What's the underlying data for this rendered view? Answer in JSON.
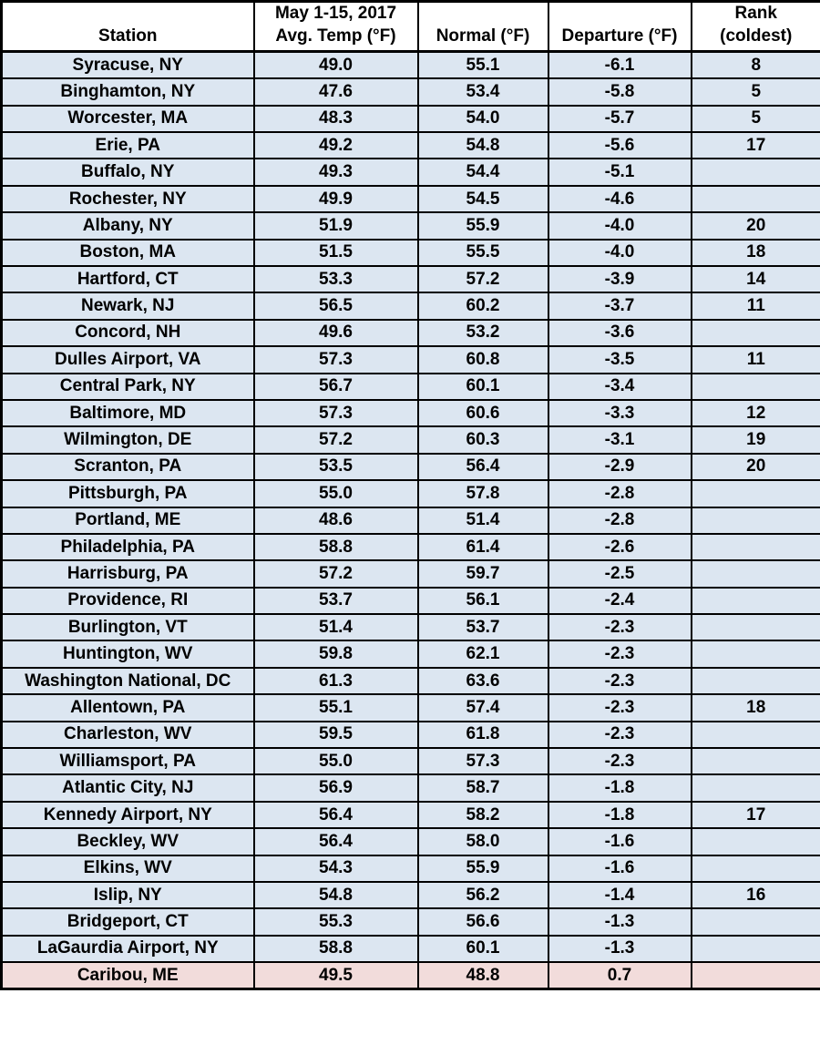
{
  "colors": {
    "row_bg": "#dce6f1",
    "highlight_bg": "#f2dcdb",
    "header_bg": "#ffffff",
    "border": "#000000",
    "text": "#000000"
  },
  "table": {
    "columns": [
      {
        "line1": "",
        "line2": "Station"
      },
      {
        "line1": "May 1-15, 2017",
        "line2": "Avg. Temp (°F)"
      },
      {
        "line1": "",
        "line2": "Normal (°F)"
      },
      {
        "line1": "",
        "line2": "Departure (°F)"
      },
      {
        "line1": "Rank",
        "line2": "(coldest)"
      }
    ],
    "rows": [
      {
        "station": "Syracuse, NY",
        "avg_temp": "49.0",
        "normal": "55.1",
        "departure": "-6.1",
        "rank": "8",
        "highlight": false
      },
      {
        "station": "Binghamton, NY",
        "avg_temp": "47.6",
        "normal": "53.4",
        "departure": "-5.8",
        "rank": "5",
        "highlight": false
      },
      {
        "station": "Worcester, MA",
        "avg_temp": "48.3",
        "normal": "54.0",
        "departure": "-5.7",
        "rank": "5",
        "highlight": false
      },
      {
        "station": "Erie, PA",
        "avg_temp": "49.2",
        "normal": "54.8",
        "departure": "-5.6",
        "rank": "17",
        "highlight": false
      },
      {
        "station": "Buffalo, NY",
        "avg_temp": "49.3",
        "normal": "54.4",
        "departure": "-5.1",
        "rank": "",
        "highlight": false
      },
      {
        "station": "Rochester, NY",
        "avg_temp": "49.9",
        "normal": "54.5",
        "departure": "-4.6",
        "rank": "",
        "highlight": false
      },
      {
        "station": "Albany, NY",
        "avg_temp": "51.9",
        "normal": "55.9",
        "departure": "-4.0",
        "rank": "20",
        "highlight": false
      },
      {
        "station": "Boston, MA",
        "avg_temp": "51.5",
        "normal": "55.5",
        "departure": "-4.0",
        "rank": "18",
        "highlight": false
      },
      {
        "station": "Hartford, CT",
        "avg_temp": "53.3",
        "normal": "57.2",
        "departure": "-3.9",
        "rank": "14",
        "highlight": false
      },
      {
        "station": "Newark, NJ",
        "avg_temp": "56.5",
        "normal": "60.2",
        "departure": "-3.7",
        "rank": "11",
        "highlight": false
      },
      {
        "station": "Concord, NH",
        "avg_temp": "49.6",
        "normal": "53.2",
        "departure": "-3.6",
        "rank": "",
        "highlight": false
      },
      {
        "station": "Dulles Airport, VA",
        "avg_temp": "57.3",
        "normal": "60.8",
        "departure": "-3.5",
        "rank": "11",
        "highlight": false
      },
      {
        "station": "Central Park, NY",
        "avg_temp": "56.7",
        "normal": "60.1",
        "departure": "-3.4",
        "rank": "",
        "highlight": false
      },
      {
        "station": "Baltimore, MD",
        "avg_temp": "57.3",
        "normal": "60.6",
        "departure": "-3.3",
        "rank": "12",
        "highlight": false
      },
      {
        "station": "Wilmington, DE",
        "avg_temp": "57.2",
        "normal": "60.3",
        "departure": "-3.1",
        "rank": "19",
        "highlight": false
      },
      {
        "station": "Scranton, PA",
        "avg_temp": "53.5",
        "normal": "56.4",
        "departure": "-2.9",
        "rank": "20",
        "highlight": false
      },
      {
        "station": "Pittsburgh, PA",
        "avg_temp": "55.0",
        "normal": "57.8",
        "departure": "-2.8",
        "rank": "",
        "highlight": false
      },
      {
        "station": "Portland, ME",
        "avg_temp": "48.6",
        "normal": "51.4",
        "departure": "-2.8",
        "rank": "",
        "highlight": false
      },
      {
        "station": "Philadelphia, PA",
        "avg_temp": "58.8",
        "normal": "61.4",
        "departure": "-2.6",
        "rank": "",
        "highlight": false
      },
      {
        "station": "Harrisburg, PA",
        "avg_temp": "57.2",
        "normal": "59.7",
        "departure": "-2.5",
        "rank": "",
        "highlight": false
      },
      {
        "station": "Providence, RI",
        "avg_temp": "53.7",
        "normal": "56.1",
        "departure": "-2.4",
        "rank": "",
        "highlight": false
      },
      {
        "station": "Burlington, VT",
        "avg_temp": "51.4",
        "normal": "53.7",
        "departure": "-2.3",
        "rank": "",
        "highlight": false
      },
      {
        "station": "Huntington, WV",
        "avg_temp": "59.8",
        "normal": "62.1",
        "departure": "-2.3",
        "rank": "",
        "highlight": false
      },
      {
        "station": "Washington National, DC",
        "avg_temp": "61.3",
        "normal": "63.6",
        "departure": "-2.3",
        "rank": "",
        "highlight": false
      },
      {
        "station": "Allentown, PA",
        "avg_temp": "55.1",
        "normal": "57.4",
        "departure": "-2.3",
        "rank": "18",
        "highlight": false
      },
      {
        "station": "Charleston, WV",
        "avg_temp": "59.5",
        "normal": "61.8",
        "departure": "-2.3",
        "rank": "",
        "highlight": false
      },
      {
        "station": "Williamsport, PA",
        "avg_temp": "55.0",
        "normal": "57.3",
        "departure": "-2.3",
        "rank": "",
        "highlight": false
      },
      {
        "station": "Atlantic City, NJ",
        "avg_temp": "56.9",
        "normal": "58.7",
        "departure": "-1.8",
        "rank": "",
        "highlight": false
      },
      {
        "station": "Kennedy Airport, NY",
        "avg_temp": "56.4",
        "normal": "58.2",
        "departure": "-1.8",
        "rank": "17",
        "highlight": false
      },
      {
        "station": "Beckley, WV",
        "avg_temp": "56.4",
        "normal": "58.0",
        "departure": "-1.6",
        "rank": "",
        "highlight": false
      },
      {
        "station": "Elkins, WV",
        "avg_temp": "54.3",
        "normal": "55.9",
        "departure": "-1.6",
        "rank": "",
        "highlight": false
      },
      {
        "station": "Islip, NY",
        "avg_temp": "54.8",
        "normal": "56.2",
        "departure": "-1.4",
        "rank": "16",
        "highlight": false
      },
      {
        "station": "Bridgeport, CT",
        "avg_temp": "55.3",
        "normal": "56.6",
        "departure": "-1.3",
        "rank": "",
        "highlight": false
      },
      {
        "station": "LaGaurdia Airport, NY",
        "avg_temp": "58.8",
        "normal": "60.1",
        "departure": "-1.3",
        "rank": "",
        "highlight": false
      },
      {
        "station": "Caribou, ME",
        "avg_temp": "49.5",
        "normal": "48.8",
        "departure": "0.7",
        "rank": "",
        "highlight": true
      }
    ]
  },
  "chart_data": {
    "type": "table",
    "columns": [
      "Station",
      "May 1-15, 2017 Avg. Temp (°F)",
      "Normal (°F)",
      "Departure (°F)",
      "Rank (coldest)"
    ],
    "rows": [
      [
        "Syracuse, NY",
        49.0,
        55.1,
        -6.1,
        8
      ],
      [
        "Binghamton, NY",
        47.6,
        53.4,
        -5.8,
        5
      ],
      [
        "Worcester, MA",
        48.3,
        54.0,
        -5.7,
        5
      ],
      [
        "Erie, PA",
        49.2,
        54.8,
        -5.6,
        17
      ],
      [
        "Buffalo, NY",
        49.3,
        54.4,
        -5.1,
        null
      ],
      [
        "Rochester, NY",
        49.9,
        54.5,
        -4.6,
        null
      ],
      [
        "Albany, NY",
        51.9,
        55.9,
        -4.0,
        20
      ],
      [
        "Boston, MA",
        51.5,
        55.5,
        -4.0,
        18
      ],
      [
        "Hartford, CT",
        53.3,
        57.2,
        -3.9,
        14
      ],
      [
        "Newark, NJ",
        56.5,
        60.2,
        -3.7,
        11
      ],
      [
        "Concord, NH",
        49.6,
        53.2,
        -3.6,
        null
      ],
      [
        "Dulles Airport, VA",
        57.3,
        60.8,
        -3.5,
        11
      ],
      [
        "Central Park, NY",
        56.7,
        60.1,
        -3.4,
        null
      ],
      [
        "Baltimore, MD",
        57.3,
        60.6,
        -3.3,
        12
      ],
      [
        "Wilmington, DE",
        57.2,
        60.3,
        -3.1,
        19
      ],
      [
        "Scranton, PA",
        53.5,
        56.4,
        -2.9,
        20
      ],
      [
        "Pittsburgh, PA",
        55.0,
        57.8,
        -2.8,
        null
      ],
      [
        "Portland, ME",
        48.6,
        51.4,
        -2.8,
        null
      ],
      [
        "Philadelphia, PA",
        58.8,
        61.4,
        -2.6,
        null
      ],
      [
        "Harrisburg, PA",
        57.2,
        59.7,
        -2.5,
        null
      ],
      [
        "Providence, RI",
        53.7,
        56.1,
        -2.4,
        null
      ],
      [
        "Burlington, VT",
        51.4,
        53.7,
        -2.3,
        null
      ],
      [
        "Huntington, WV",
        59.8,
        62.1,
        -2.3,
        null
      ],
      [
        "Washington National, DC",
        61.3,
        63.6,
        -2.3,
        null
      ],
      [
        "Allentown, PA",
        55.1,
        57.4,
        -2.3,
        18
      ],
      [
        "Charleston, WV",
        59.5,
        61.8,
        -2.3,
        null
      ],
      [
        "Williamsport, PA",
        55.0,
        57.3,
        -2.3,
        null
      ],
      [
        "Atlantic City, NJ",
        56.9,
        58.7,
        -1.8,
        null
      ],
      [
        "Kennedy Airport, NY",
        56.4,
        58.2,
        -1.8,
        17
      ],
      [
        "Beckley, WV",
        56.4,
        58.0,
        -1.6,
        null
      ],
      [
        "Elkins, WV",
        54.3,
        55.9,
        -1.6,
        null
      ],
      [
        "Islip, NY",
        54.8,
        56.2,
        -1.4,
        16
      ],
      [
        "Bridgeport, CT",
        55.3,
        56.6,
        -1.3,
        null
      ],
      [
        "LaGaurdia Airport, NY",
        58.8,
        60.1,
        -1.3,
        null
      ],
      [
        "Caribou, ME",
        49.5,
        48.8,
        0.7,
        null
      ]
    ],
    "highlighted_row": "Caribou, ME",
    "legend_position": "none",
    "grid": true
  }
}
